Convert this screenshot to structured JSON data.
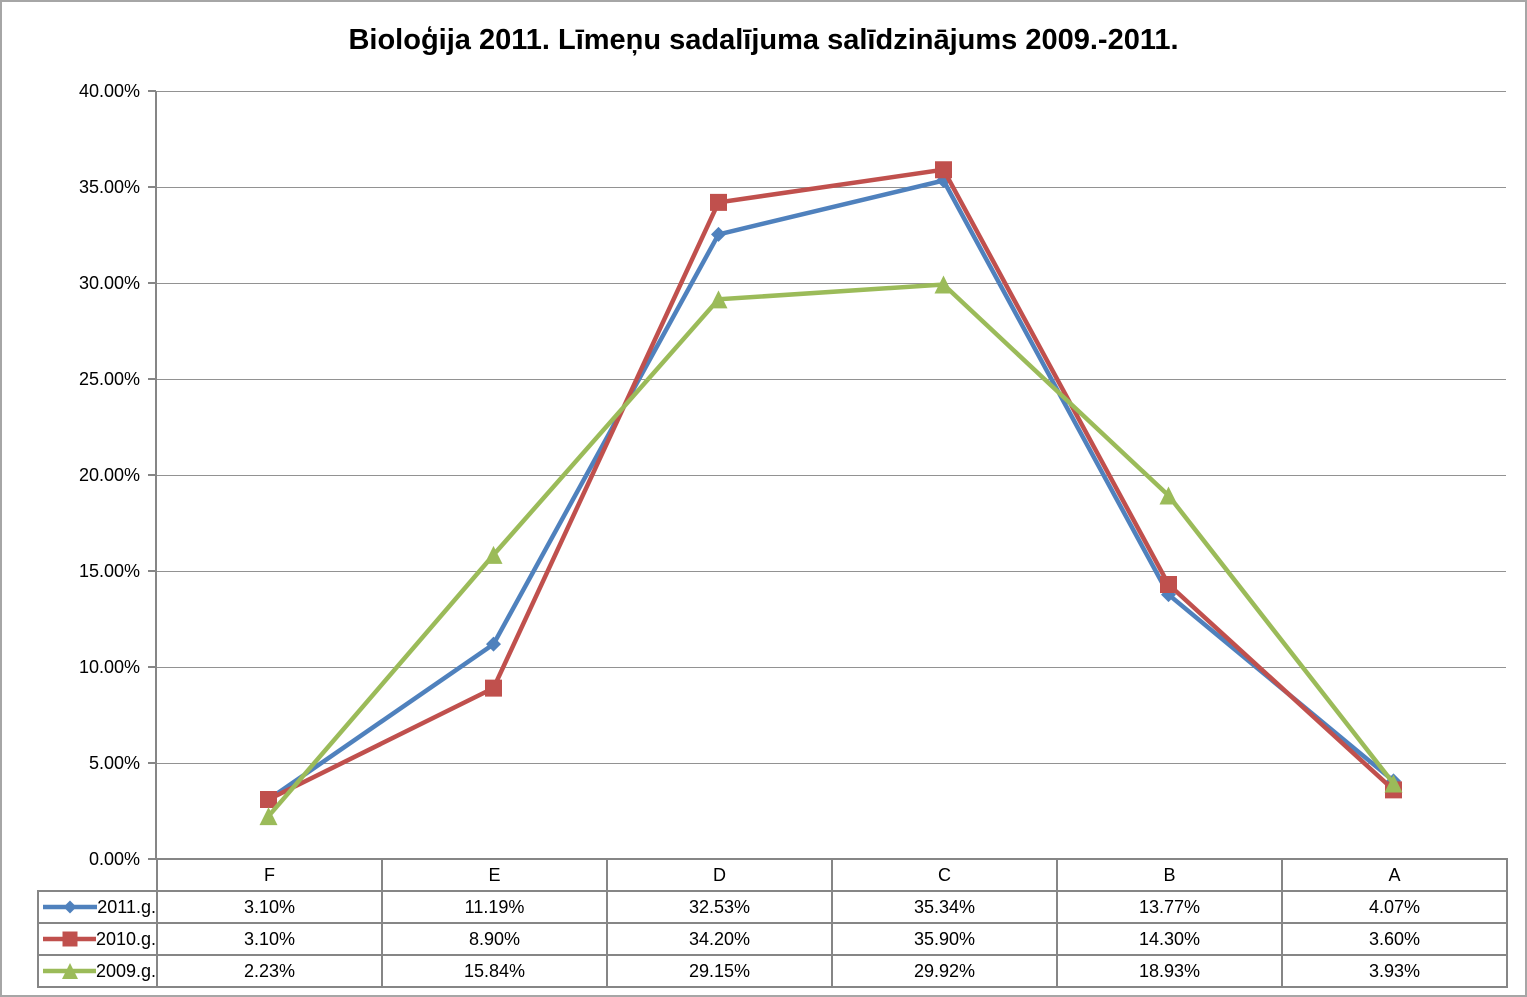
{
  "title": "Bioloģija 2011. Līmeņu sadalījuma salīdzinājums 2009.-2011.",
  "chart_data": {
    "type": "line",
    "title": "Bioloģija 2011. Līmeņu sadalījuma salīdzinājums 2009.-2011.",
    "categories": [
      "F",
      "E",
      "D",
      "C",
      "B",
      "A"
    ],
    "series": [
      {
        "name": "2011.g.",
        "color": "#4F81BD",
        "marker": "diamond",
        "values": [
          3.1,
          11.19,
          32.53,
          35.34,
          13.77,
          4.07
        ],
        "labels": [
          "3.10%",
          "11.19%",
          "32.53%",
          "35.34%",
          "13.77%",
          "4.07%"
        ]
      },
      {
        "name": "2010.g.",
        "color": "#C0504D",
        "marker": "square",
        "values": [
          3.1,
          8.9,
          34.2,
          35.9,
          14.3,
          3.6
        ],
        "labels": [
          "3.10%",
          "8.90%",
          "34.20%",
          "35.90%",
          "14.30%",
          "3.60%"
        ]
      },
      {
        "name": "2009.g.",
        "color": "#9BBB59",
        "marker": "triangle",
        "values": [
          2.23,
          15.84,
          29.15,
          29.92,
          18.93,
          3.93
        ],
        "labels": [
          "2.23%",
          "15.84%",
          "29.15%",
          "29.92%",
          "18.93%",
          "3.93%"
        ]
      }
    ],
    "y_axis": {
      "min": 0,
      "max": 40,
      "step": 5,
      "tick_labels": [
        "40.00%",
        "35.00%",
        "30.00%",
        "25.00%",
        "20.00%",
        "15.00%",
        "10.00%",
        "5.00%",
        "0.00%"
      ]
    },
    "x_axis": {
      "labels": [
        "F",
        "E",
        "D",
        "C",
        "B",
        "A"
      ]
    },
    "grid": true,
    "legend_position": "table-left",
    "colors": {
      "gridline": "#929292",
      "axis": "#868686",
      "table_border": "#868686",
      "text": "#000000",
      "frame": "#A6A6A6",
      "background": "#FFFFFF"
    }
  }
}
